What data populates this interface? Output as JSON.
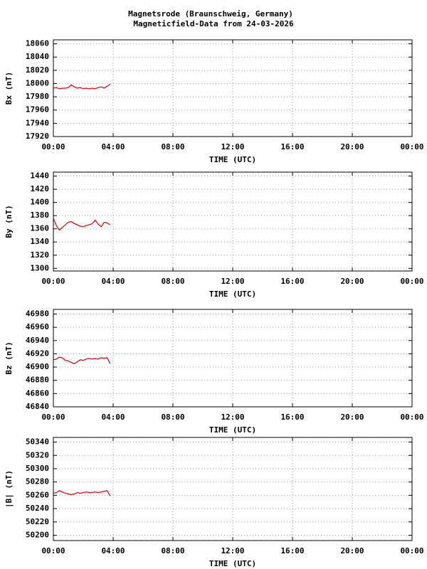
{
  "title": "Magnetsrode (Braunschweig, Germany)",
  "subtitle": "Magneticfield-Data from 24-03-2026",
  "chart_data": [
    {
      "type": "line",
      "ylabel": "Bx (nT)",
      "xlabel": "TIME (UTC)",
      "color": "#cc0000",
      "grid": true,
      "x": [
        0,
        0.2,
        0.4,
        0.6,
        0.8,
        1.0,
        1.2,
        1.4,
        1.6,
        1.8,
        2.0,
        2.2,
        2.4,
        2.6,
        2.8,
        3.0,
        3.2,
        3.4,
        3.6,
        3.8
      ],
      "values": [
        17993,
        17994,
        17992,
        17993,
        17993,
        17994,
        17998,
        17995,
        17993,
        17994,
        17992,
        17993,
        17992,
        17993,
        17992,
        17994,
        17995,
        17993,
        17996,
        17999
      ],
      "xlim": [
        0,
        24
      ],
      "xticks": [
        {
          "value": 0,
          "label": "00:00"
        },
        {
          "value": 4,
          "label": "04:00"
        },
        {
          "value": 8,
          "label": "08:00"
        },
        {
          "value": 12,
          "label": "12:00"
        },
        {
          "value": 16,
          "label": "16:00"
        },
        {
          "value": 20,
          "label": "20:00"
        },
        {
          "value": 24,
          "label": "00:00"
        }
      ],
      "ylim": [
        17920,
        18066
      ],
      "yticks": [
        17920,
        17940,
        17960,
        17980,
        18000,
        18020,
        18040,
        18060
      ]
    },
    {
      "type": "line",
      "ylabel": "By (nT)",
      "xlabel": "TIME (UTC)",
      "color": "#cc0000",
      "grid": true,
      "x": [
        0,
        0.2,
        0.4,
        0.6,
        0.8,
        1.0,
        1.2,
        1.4,
        1.6,
        1.8,
        2.0,
        2.2,
        2.4,
        2.6,
        2.8,
        3.0,
        3.2,
        3.4,
        3.6,
        3.8
      ],
      "values": [
        1376,
        1365,
        1358,
        1362,
        1366,
        1370,
        1371,
        1368,
        1366,
        1364,
        1363,
        1365,
        1366,
        1368,
        1373,
        1367,
        1363,
        1370,
        1369,
        1366
      ],
      "xlim": [
        0,
        24
      ],
      "xticks": [
        {
          "value": 0,
          "label": "00:00"
        },
        {
          "value": 4,
          "label": "04:00"
        },
        {
          "value": 8,
          "label": "08:00"
        },
        {
          "value": 12,
          "label": "12:00"
        },
        {
          "value": 16,
          "label": "16:00"
        },
        {
          "value": 20,
          "label": "20:00"
        },
        {
          "value": 24,
          "label": "00:00"
        }
      ],
      "ylim": [
        1296,
        1446
      ],
      "yticks": [
        1300,
        1320,
        1340,
        1360,
        1380,
        1400,
        1420,
        1440
      ]
    },
    {
      "type": "line",
      "ylabel": "Bz (nT)",
      "xlabel": "TIME (UTC)",
      "color": "#cc0000",
      "grid": true,
      "x": [
        0,
        0.2,
        0.4,
        0.6,
        0.8,
        1.0,
        1.2,
        1.4,
        1.6,
        1.8,
        2.0,
        2.2,
        2.4,
        2.6,
        2.8,
        3.0,
        3.2,
        3.4,
        3.6,
        3.8
      ],
      "values": [
        46911,
        46912,
        46915,
        46914,
        46910,
        46909,
        46907,
        46905,
        46908,
        46911,
        46910,
        46912,
        46913,
        46912,
        46913,
        46912,
        46914,
        46913,
        46914,
        46905
      ],
      "xlim": [
        0,
        24
      ],
      "xticks": [
        {
          "value": 0,
          "label": "00:00"
        },
        {
          "value": 4,
          "label": "04:00"
        },
        {
          "value": 8,
          "label": "08:00"
        },
        {
          "value": 12,
          "label": "12:00"
        },
        {
          "value": 16,
          "label": "16:00"
        },
        {
          "value": 20,
          "label": "20:00"
        },
        {
          "value": 24,
          "label": "00:00"
        }
      ],
      "ylim": [
        46840,
        46987
      ],
      "yticks": [
        46840,
        46860,
        46880,
        46900,
        46920,
        46940,
        46960,
        46980
      ]
    },
    {
      "type": "line",
      "ylabel": "|B| (nT)",
      "xlabel": "TIME (UTC)",
      "color": "#cc0000",
      "grid": true,
      "x": [
        0,
        0.2,
        0.4,
        0.6,
        0.8,
        1.0,
        1.2,
        1.4,
        1.6,
        1.8,
        2.0,
        2.2,
        2.4,
        2.6,
        2.8,
        3.0,
        3.2,
        3.4,
        3.6,
        3.8
      ],
      "values": [
        50263,
        50264,
        50267,
        50265,
        50263,
        50262,
        50261,
        50262,
        50264,
        50263,
        50264,
        50265,
        50264,
        50264,
        50265,
        50264,
        50265,
        50266,
        50267,
        50259
      ],
      "xlim": [
        0,
        24
      ],
      "xticks": [
        {
          "value": 0,
          "label": "00:00"
        },
        {
          "value": 4,
          "label": "04:00"
        },
        {
          "value": 8,
          "label": "08:00"
        },
        {
          "value": 12,
          "label": "12:00"
        },
        {
          "value": 16,
          "label": "16:00"
        },
        {
          "value": 20,
          "label": "20:00"
        },
        {
          "value": 24,
          "label": "00:00"
        }
      ],
      "ylim": [
        50192,
        50347
      ],
      "yticks": [
        50200,
        50220,
        50240,
        50260,
        50280,
        50300,
        50320,
        50340
      ]
    }
  ]
}
